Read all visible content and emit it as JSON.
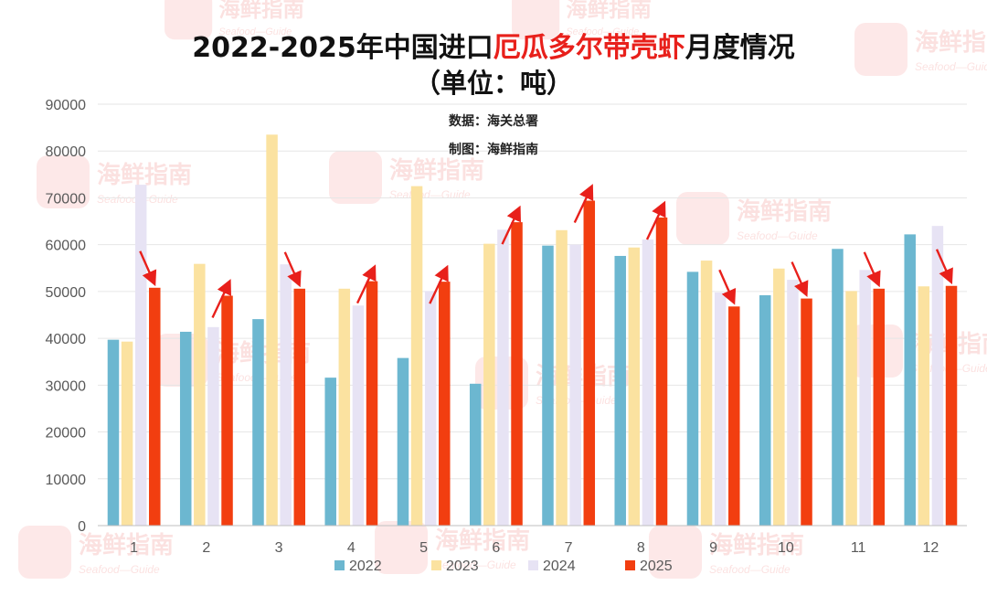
{
  "chart_data": {
    "type": "bar",
    "title_parts": [
      "2022-2025年中国进口",
      "厄瓜多尔带壳虾",
      "月度情况"
    ],
    "subtitle": "（单位：吨）",
    "notes": [
      "数据：海关总署",
      "制图：海鲜指南"
    ],
    "categories": [
      "1",
      "2",
      "3",
      "4",
      "5",
      "6",
      "7",
      "8",
      "9",
      "10",
      "11",
      "12"
    ],
    "series": [
      {
        "name": "2022",
        "color": "#6cb7d0",
        "values": [
          39700,
          41400,
          44100,
          31600,
          35800,
          30300,
          59800,
          57600,
          54200,
          49200,
          59100,
          62200
        ]
      },
      {
        "name": "2023",
        "color": "#fbe2a0",
        "values": [
          39300,
          55900,
          83500,
          50600,
          72500,
          60200,
          63100,
          59400,
          56600,
          54900,
          50100,
          51100
        ]
      },
      {
        "name": "2024",
        "color": "#e7e3f4",
        "values": [
          72800,
          42400,
          55800,
          47000,
          50100,
          63200,
          60000,
          61100,
          49800,
          52500,
          54600,
          64000
        ]
      },
      {
        "name": "2025",
        "color": "#f23e10",
        "values": [
          50800,
          49100,
          50600,
          52200,
          52100,
          64800,
          69400,
          65800,
          46800,
          48500,
          50600,
          51200
        ]
      }
    ],
    "ylim": [
      0,
      90000
    ],
    "yticks": [
      0,
      10000,
      20000,
      30000,
      40000,
      50000,
      60000,
      70000,
      80000,
      90000
    ],
    "legend_position": "bottom",
    "annotation_color": "#e8201b",
    "watermark": {
      "name": "海鲜指南",
      "sub": "Seafood—Guide"
    }
  }
}
